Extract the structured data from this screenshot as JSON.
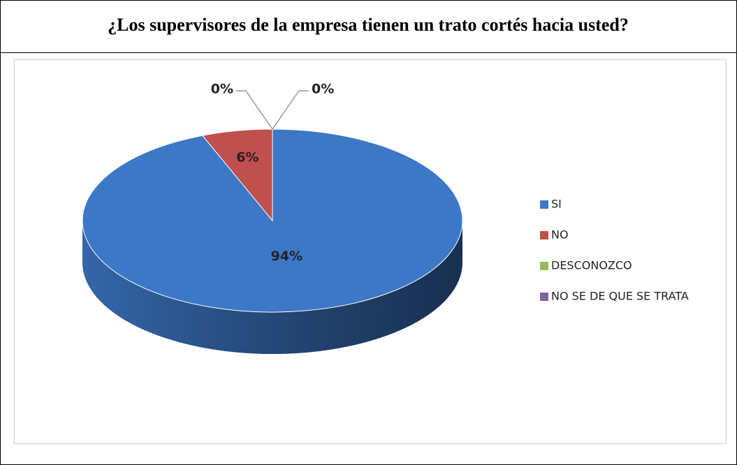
{
  "chart_data": {
    "type": "pie",
    "title": "¿Los supervisores de la empresa tienen un trato cortés hacia usted?",
    "categories": [
      "SI",
      "NO",
      "DESCONOZCO",
      "NO SE DE QUE SE TRATA"
    ],
    "values": [
      94,
      6,
      0,
      0
    ],
    "value_labels": [
      "94%",
      "6%",
      "0%",
      "0%"
    ],
    "colors": [
      "#3d78c6",
      "#c0504d",
      "#9bbb59",
      "#8064a2"
    ],
    "legend": "right"
  }
}
